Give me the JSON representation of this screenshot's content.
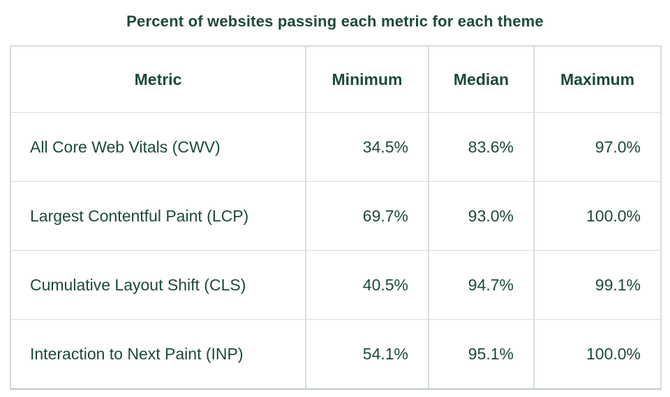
{
  "title": "Percent of websites passing each metric for each theme",
  "chart_data": {
    "type": "table",
    "title": "Percent of websites passing each metric for each theme",
    "columns": [
      "Metric",
      "Minimum",
      "Median",
      "Maximum"
    ],
    "rows": [
      [
        "All Core Web Vitals (CWV)",
        "34.5%",
        "83.6%",
        "97.0%"
      ],
      [
        "Largest Contentful Paint (LCP)",
        "69.7%",
        "93.0%",
        "100.0%"
      ],
      [
        "Cumulative Layout Shift (CLS)",
        "40.5%",
        "94.7%",
        "99.1%"
      ],
      [
        "Interaction to Next Paint (INP)",
        "54.1%",
        "95.1%",
        "100.0%"
      ]
    ],
    "values_numeric": [
      {
        "metric": "All Core Web Vitals (CWV)",
        "minimum": 34.5,
        "median": 83.6,
        "maximum": 97.0
      },
      {
        "metric": "Largest Contentful Paint (LCP)",
        "minimum": 69.7,
        "median": 93.0,
        "maximum": 100.0
      },
      {
        "metric": "Cumulative Layout Shift (CLS)",
        "minimum": 40.5,
        "median": 94.7,
        "maximum": 99.1
      },
      {
        "metric": "Interaction to Next Paint (INP)",
        "minimum": 54.1,
        "median": 95.1,
        "maximum": 100.0
      }
    ],
    "layout": {
      "header_alignment": "center",
      "metric_column_alignment": "left",
      "value_columns_alignment": "right",
      "grid": true
    }
  },
  "colors": {
    "text_green": "#1c4a39",
    "border": "#d7ddd9",
    "border_bottom": "#ccd5cf",
    "background": "#ffffff"
  }
}
